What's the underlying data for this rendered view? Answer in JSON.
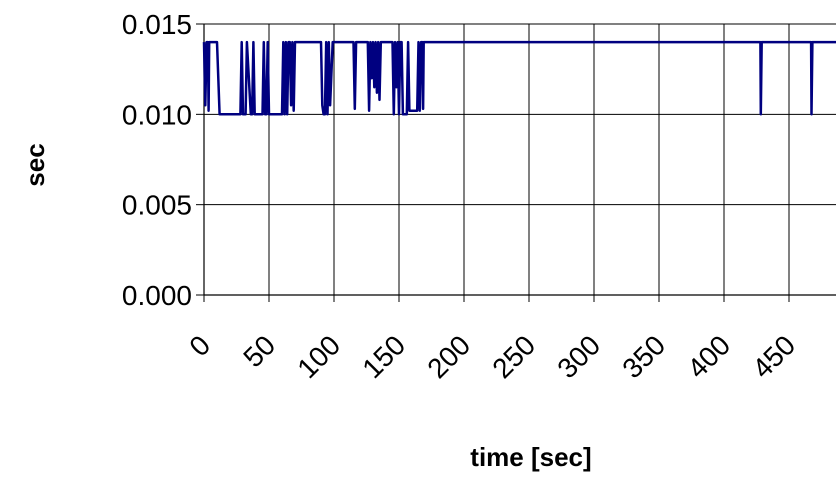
{
  "chart_data": {
    "type": "line",
    "title": "",
    "xlabel": "time [sec]",
    "ylabel": "sec",
    "xlim": [
      0,
      500
    ],
    "ylim": [
      0,
      0.015
    ],
    "x_ticks": [
      "0",
      "50",
      "100",
      "150",
      "200",
      "250",
      "300",
      "350",
      "400",
      "450"
    ],
    "y_ticks": [
      "0.000",
      "0.005",
      "0.010",
      "0.015"
    ],
    "grid": true,
    "legend": "none",
    "line_color": "#000080",
    "series": [
      {
        "x": [
          0,
          1,
          2,
          3,
          3.5,
          4,
          10,
          12,
          28,
          29,
          30,
          32,
          33,
          36,
          37,
          38,
          39,
          40,
          41,
          45,
          46,
          47,
          48,
          49,
          50,
          51,
          52,
          53,
          54,
          60,
          61,
          62,
          63,
          64,
          65,
          66,
          67,
          68,
          69,
          70,
          71,
          72,
          90,
          91,
          92,
          93,
          94,
          95,
          96,
          97,
          99,
          100,
          101,
          102,
          103,
          104,
          115,
          116,
          117,
          126,
          127,
          128,
          129,
          130,
          131,
          132,
          133,
          134,
          135,
          136,
          137,
          138,
          139,
          145,
          146,
          147,
          148,
          149,
          150,
          151,
          152,
          153,
          154,
          155,
          156,
          157,
          158,
          164,
          165,
          166,
          167,
          168,
          168.5,
          169,
          428,
          428.3,
          429,
          467,
          467.3,
          468,
          500
        ],
        "y": [
          0.014,
          0.0105,
          0.014,
          0.014,
          0.0102,
          0.014,
          0.014,
          0.01,
          0.01,
          0.014,
          0.01,
          0.01,
          0.014,
          0.01,
          0.01,
          0.014,
          0.01,
          0.01,
          0.01,
          0.01,
          0.014,
          0.01,
          0.01,
          0.014,
          0.01,
          0.01,
          0.01,
          0.01,
          0.01,
          0.01,
          0.014,
          0.01,
          0.014,
          0.01,
          0.014,
          0.014,
          0.0105,
          0.014,
          0.0102,
          0.014,
          0.014,
          0.014,
          0.014,
          0.0105,
          0.01,
          0.01,
          0.014,
          0.01,
          0.014,
          0.0105,
          0.014,
          0.014,
          0.014,
          0.014,
          0.014,
          0.014,
          0.014,
          0.0103,
          0.014,
          0.014,
          0.0102,
          0.014,
          0.012,
          0.014,
          0.0115,
          0.014,
          0.0112,
          0.014,
          0.0108,
          0.014,
          0.014,
          0.014,
          0.014,
          0.014,
          0.01,
          0.014,
          0.0115,
          0.014,
          0.01,
          0.014,
          0.014,
          0.01,
          0.01,
          0.01,
          0.01,
          0.014,
          0.0102,
          0.0102,
          0.014,
          0.0102,
          0.014,
          0.014,
          0.0103,
          0.014,
          0.014,
          0.01,
          0.014,
          0.014,
          0.01,
          0.014,
          0.014
        ]
      }
    ]
  }
}
